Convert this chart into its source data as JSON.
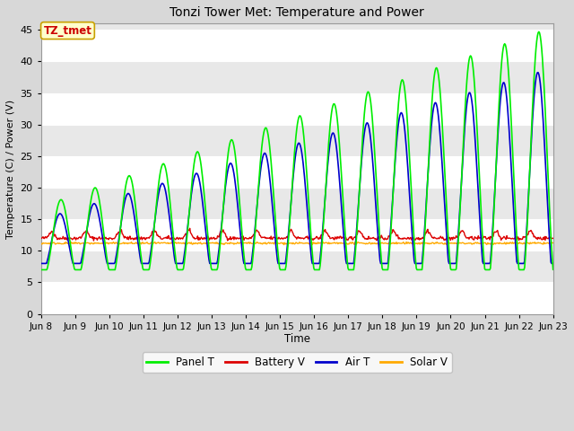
{
  "title": "Tonzi Tower Met: Temperature and Power",
  "xlabel": "Time",
  "ylabel": "Temperature (C) / Power (V)",
  "ylim": [
    0,
    46
  ],
  "yticks": [
    0,
    5,
    10,
    15,
    20,
    25,
    30,
    35,
    40,
    45
  ],
  "xtick_labels": [
    "Jun 8",
    "Jun 9",
    "Jun 10",
    "Jun 11",
    "Jun 12",
    "Jun 13",
    "Jun 14",
    "Jun 15",
    "Jun 16",
    "Jun 17",
    "Jun 18",
    "Jun 19",
    "Jun 20",
    "Jun 21",
    "Jun 22",
    "Jun 23"
  ],
  "annotation_text": "TZ_tmet",
  "annotation_bg": "#ffffcc",
  "annotation_border": "#c8a000",
  "annotation_text_color": "#cc0000",
  "fig_bg_color": "#d8d8d8",
  "plot_bg": "#e8e8e8",
  "band_color_light": "#f0f0f0",
  "band_color_dark": "#d8d8d8",
  "grid_color": "#ffffff",
  "colors": {
    "panel_t": "#00ee00",
    "battery_v": "#dd0000",
    "air_t": "#0000cc",
    "solar_v": "#ffaa00"
  },
  "n_days": 15,
  "day_start": 8
}
